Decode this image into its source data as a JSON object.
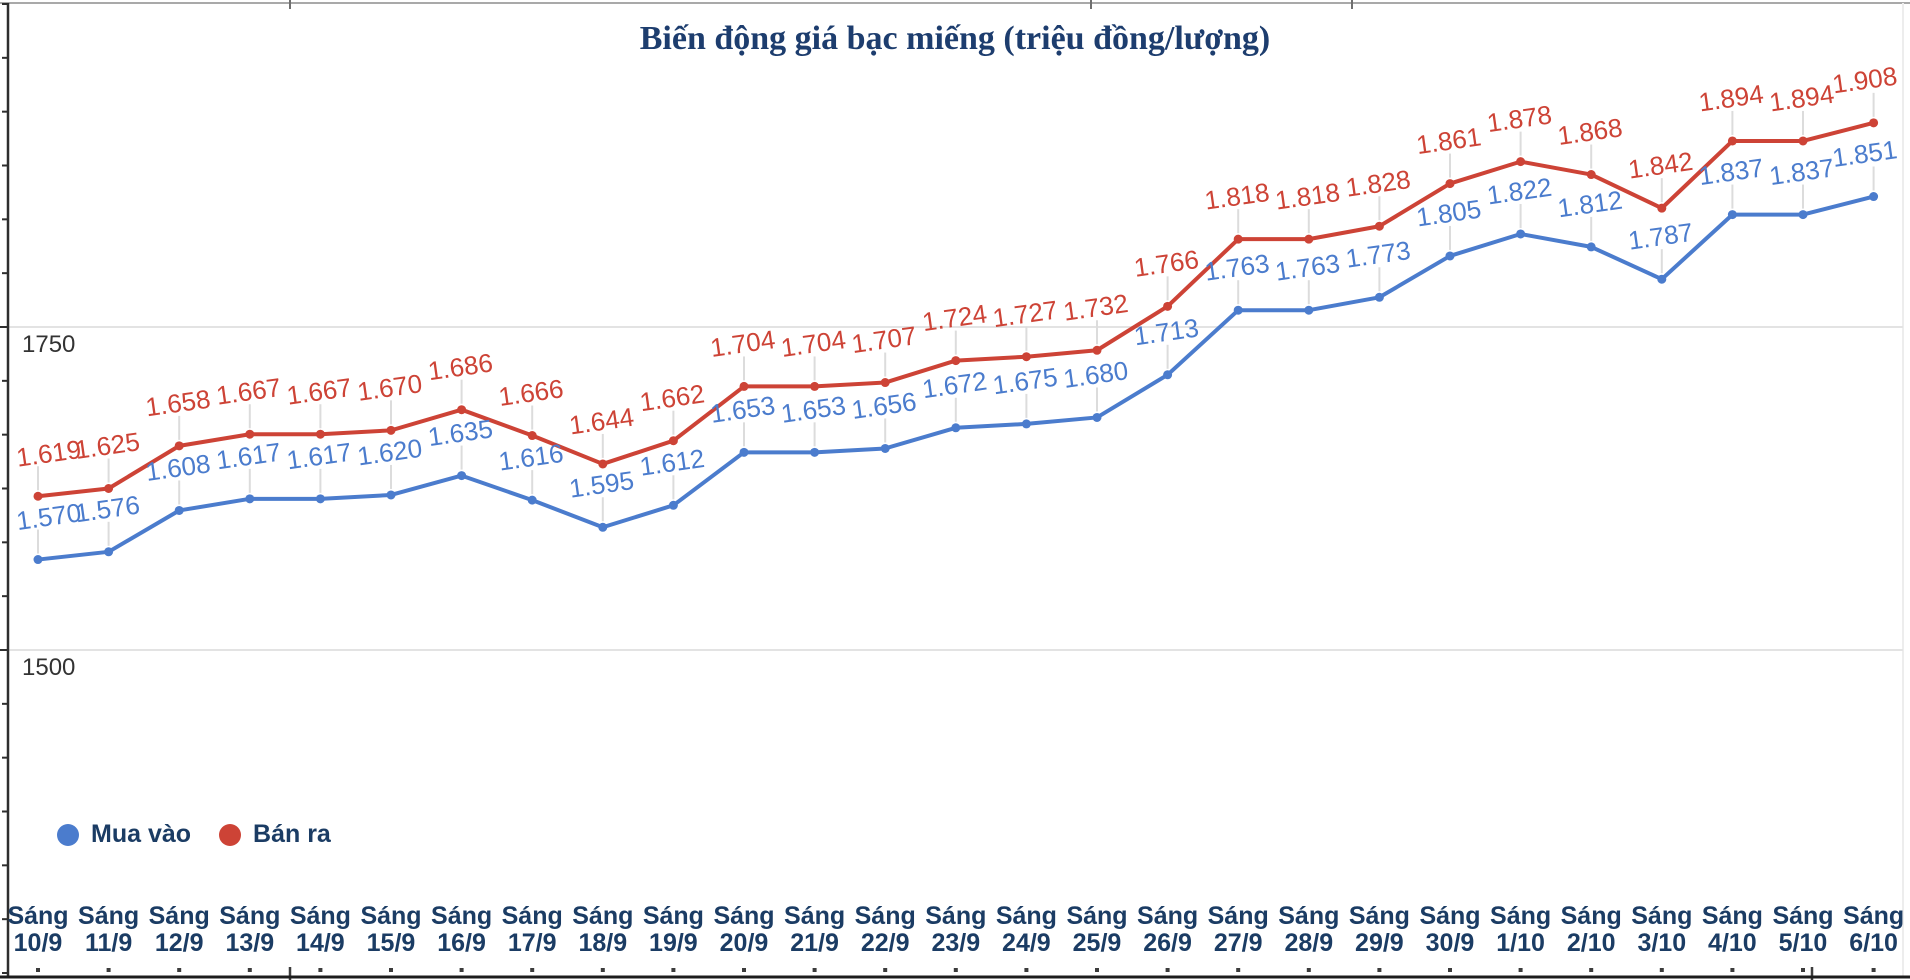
{
  "chart_data": {
    "type": "line",
    "title": "Biến động giá bạc miếng (triệu đồng/lượng)",
    "x_prefix": "Sáng",
    "categories": [
      "10/9",
      "11/9",
      "12/9",
      "13/9",
      "14/9",
      "15/9",
      "16/9",
      "17/9",
      "18/9",
      "19/9",
      "20/9",
      "21/9",
      "22/9",
      "23/9",
      "24/9",
      "25/9",
      "26/9",
      "27/9",
      "28/9",
      "29/9",
      "30/9",
      "1/10",
      "2/10",
      "3/10",
      "4/10",
      "5/10",
      "6/10"
    ],
    "series": [
      {
        "name": "Mua vào",
        "color": "#4b7ccd",
        "values": [
          1570,
          1576,
          1608,
          1617,
          1617,
          1620,
          1635,
          1616,
          1595,
          1612,
          1653,
          1653,
          1656,
          1672,
          1675,
          1680,
          1713,
          1763,
          1763,
          1773,
          1805,
          1822,
          1812,
          1787,
          1837,
          1837,
          1851
        ]
      },
      {
        "name": "Bán ra",
        "color": "#cd4336",
        "values": [
          1619,
          1625,
          1658,
          1667,
          1667,
          1670,
          1686,
          1666,
          1644,
          1662,
          1704,
          1704,
          1707,
          1724,
          1727,
          1732,
          1766,
          1818,
          1818,
          1828,
          1861,
          1878,
          1868,
          1842,
          1894,
          1894,
          1908
        ]
      }
    ],
    "y_gridlines": [
      1750,
      1500
    ],
    "label_divisor": 1000,
    "label_decimals": 3,
    "grid": true,
    "legend_position": "bottom-left",
    "data_labels_shown": true
  }
}
